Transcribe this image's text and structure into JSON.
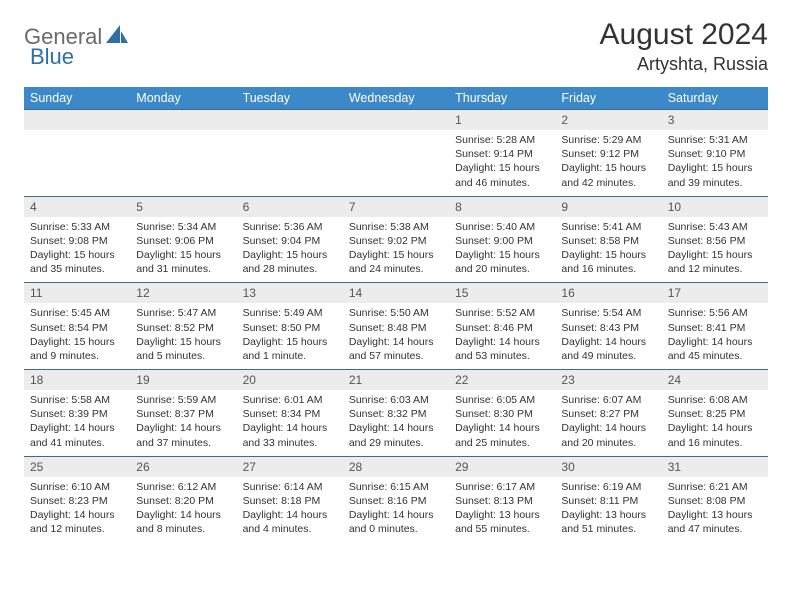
{
  "brand": {
    "part1": "General",
    "part2": "Blue"
  },
  "title": "August 2024",
  "location": "Artyshta, Russia",
  "colors": {
    "header_bg": "#3b89c9",
    "header_text": "#ffffff",
    "daynum_bg": "#ececec",
    "cell_border": "#3b6b95",
    "logo_gray": "#6b6b6b",
    "logo_blue": "#2f6fa8"
  },
  "day_headers": [
    "Sunday",
    "Monday",
    "Tuesday",
    "Wednesday",
    "Thursday",
    "Friday",
    "Saturday"
  ],
  "weeks": [
    [
      null,
      null,
      null,
      null,
      {
        "n": "1",
        "sr": "5:28 AM",
        "ss": "9:14 PM",
        "dl": "15 hours and 46 minutes."
      },
      {
        "n": "2",
        "sr": "5:29 AM",
        "ss": "9:12 PM",
        "dl": "15 hours and 42 minutes."
      },
      {
        "n": "3",
        "sr": "5:31 AM",
        "ss": "9:10 PM",
        "dl": "15 hours and 39 minutes."
      }
    ],
    [
      {
        "n": "4",
        "sr": "5:33 AM",
        "ss": "9:08 PM",
        "dl": "15 hours and 35 minutes."
      },
      {
        "n": "5",
        "sr": "5:34 AM",
        "ss": "9:06 PM",
        "dl": "15 hours and 31 minutes."
      },
      {
        "n": "6",
        "sr": "5:36 AM",
        "ss": "9:04 PM",
        "dl": "15 hours and 28 minutes."
      },
      {
        "n": "7",
        "sr": "5:38 AM",
        "ss": "9:02 PM",
        "dl": "15 hours and 24 minutes."
      },
      {
        "n": "8",
        "sr": "5:40 AM",
        "ss": "9:00 PM",
        "dl": "15 hours and 20 minutes."
      },
      {
        "n": "9",
        "sr": "5:41 AM",
        "ss": "8:58 PM",
        "dl": "15 hours and 16 minutes."
      },
      {
        "n": "10",
        "sr": "5:43 AM",
        "ss": "8:56 PM",
        "dl": "15 hours and 12 minutes."
      }
    ],
    [
      {
        "n": "11",
        "sr": "5:45 AM",
        "ss": "8:54 PM",
        "dl": "15 hours and 9 minutes."
      },
      {
        "n": "12",
        "sr": "5:47 AM",
        "ss": "8:52 PM",
        "dl": "15 hours and 5 minutes."
      },
      {
        "n": "13",
        "sr": "5:49 AM",
        "ss": "8:50 PM",
        "dl": "15 hours and 1 minute."
      },
      {
        "n": "14",
        "sr": "5:50 AM",
        "ss": "8:48 PM",
        "dl": "14 hours and 57 minutes."
      },
      {
        "n": "15",
        "sr": "5:52 AM",
        "ss": "8:46 PM",
        "dl": "14 hours and 53 minutes."
      },
      {
        "n": "16",
        "sr": "5:54 AM",
        "ss": "8:43 PM",
        "dl": "14 hours and 49 minutes."
      },
      {
        "n": "17",
        "sr": "5:56 AM",
        "ss": "8:41 PM",
        "dl": "14 hours and 45 minutes."
      }
    ],
    [
      {
        "n": "18",
        "sr": "5:58 AM",
        "ss": "8:39 PM",
        "dl": "14 hours and 41 minutes."
      },
      {
        "n": "19",
        "sr": "5:59 AM",
        "ss": "8:37 PM",
        "dl": "14 hours and 37 minutes."
      },
      {
        "n": "20",
        "sr": "6:01 AM",
        "ss": "8:34 PM",
        "dl": "14 hours and 33 minutes."
      },
      {
        "n": "21",
        "sr": "6:03 AM",
        "ss": "8:32 PM",
        "dl": "14 hours and 29 minutes."
      },
      {
        "n": "22",
        "sr": "6:05 AM",
        "ss": "8:30 PM",
        "dl": "14 hours and 25 minutes."
      },
      {
        "n": "23",
        "sr": "6:07 AM",
        "ss": "8:27 PM",
        "dl": "14 hours and 20 minutes."
      },
      {
        "n": "24",
        "sr": "6:08 AM",
        "ss": "8:25 PM",
        "dl": "14 hours and 16 minutes."
      }
    ],
    [
      {
        "n": "25",
        "sr": "6:10 AM",
        "ss": "8:23 PM",
        "dl": "14 hours and 12 minutes."
      },
      {
        "n": "26",
        "sr": "6:12 AM",
        "ss": "8:20 PM",
        "dl": "14 hours and 8 minutes."
      },
      {
        "n": "27",
        "sr": "6:14 AM",
        "ss": "8:18 PM",
        "dl": "14 hours and 4 minutes."
      },
      {
        "n": "28",
        "sr": "6:15 AM",
        "ss": "8:16 PM",
        "dl": "14 hours and 0 minutes."
      },
      {
        "n": "29",
        "sr": "6:17 AM",
        "ss": "8:13 PM",
        "dl": "13 hours and 55 minutes."
      },
      {
        "n": "30",
        "sr": "6:19 AM",
        "ss": "8:11 PM",
        "dl": "13 hours and 51 minutes."
      },
      {
        "n": "31",
        "sr": "6:21 AM",
        "ss": "8:08 PM",
        "dl": "13 hours and 47 minutes."
      }
    ]
  ],
  "labels": {
    "sunrise": "Sunrise: ",
    "sunset": "Sunset: ",
    "daylight": "Daylight: "
  }
}
